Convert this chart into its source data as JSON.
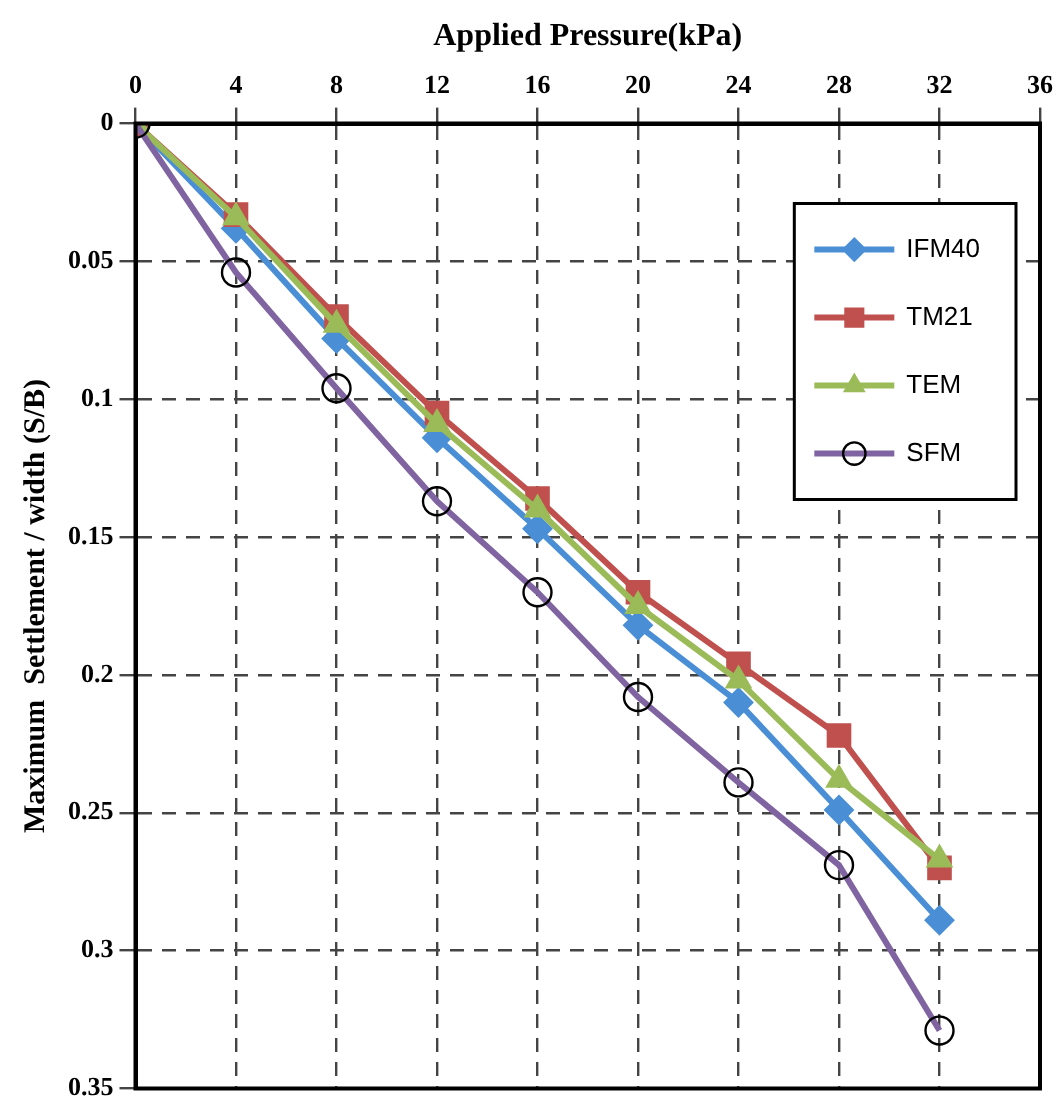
{
  "chart_data": {
    "type": "line",
    "xlabel": "Applied Pressure(kPa)",
    "ylabel": "Maximum  Settlement / width (S/B)",
    "x": [
      0,
      4,
      8,
      12,
      16,
      20,
      24,
      28,
      32
    ],
    "xlim": [
      0,
      36
    ],
    "xticks": [
      0,
      4,
      8,
      12,
      16,
      20,
      24,
      28,
      32,
      36
    ],
    "ylim": [
      0.35,
      0
    ],
    "yticks": [
      0,
      0.05,
      0.1,
      0.15,
      0.2,
      0.25,
      0.3,
      0.35
    ],
    "grid": true,
    "legend": "top right",
    "line_style": "solid",
    "series": [
      {
        "name": "IFM40",
        "color": "#4a8fd6",
        "marker": "diamond",
        "values": [
          0,
          0.038,
          0.078,
          0.114,
          0.147,
          0.182,
          0.21,
          0.249,
          0.289
        ]
      },
      {
        "name": "TM21",
        "color": "#c0504d",
        "marker": "square",
        "values": [
          0,
          0.033,
          0.07,
          0.105,
          0.136,
          0.17,
          0.196,
          0.222,
          0.27
        ]
      },
      {
        "name": "TEM",
        "color": "#9bbb59",
        "marker": "triangle",
        "values": [
          0,
          0.034,
          0.073,
          0.109,
          0.14,
          0.175,
          0.202,
          0.238,
          0.267
        ]
      },
      {
        "name": "SFM",
        "color": "#8064a2",
        "marker": "circle",
        "values": [
          0,
          0.054,
          0.096,
          0.137,
          0.17,
          0.208,
          0.239,
          0.269,
          0.329
        ]
      }
    ]
  }
}
